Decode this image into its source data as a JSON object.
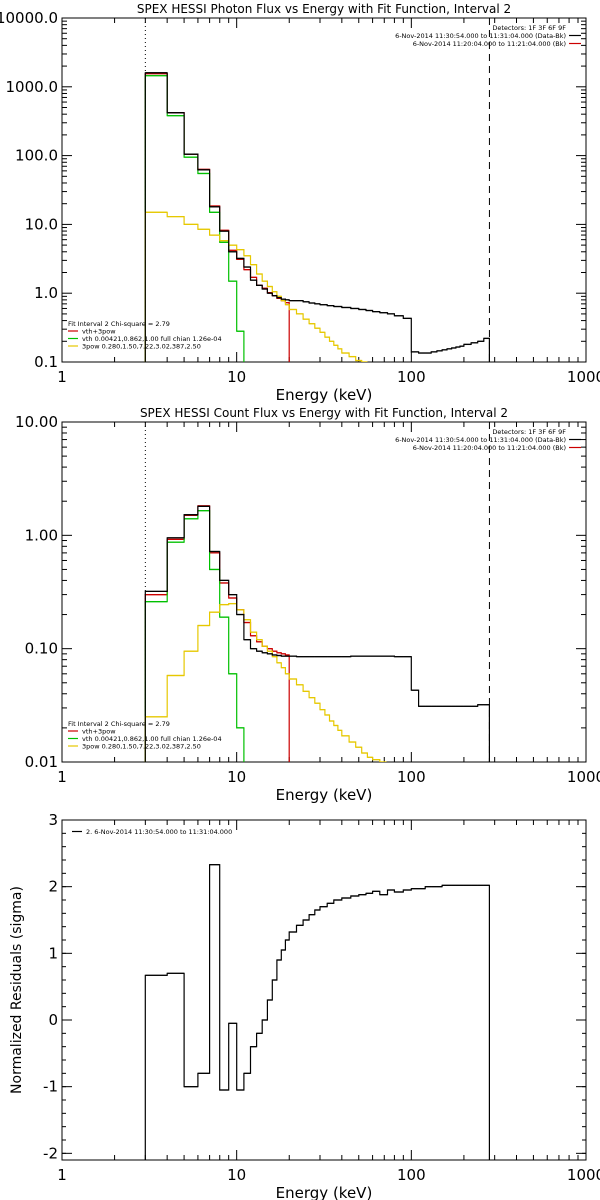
{
  "chart_data": [
    {
      "type": "line",
      "title": "SPEX HESSI Photon Flux vs Energy with Fit Function, Interval 2",
      "xlabel": "Energy (keV)",
      "ylabel": "",
      "xscale": "log",
      "yscale": "log",
      "xlim": [
        1,
        1000
      ],
      "ylim": [
        0.1,
        10000
      ],
      "x_ticks": [
        1,
        10,
        100,
        1000
      ],
      "x_tick_labels": [
        "1",
        "10",
        "100",
        "1000"
      ],
      "y_ticks": [
        0.1,
        1,
        10,
        100,
        1000,
        10000
      ],
      "y_tick_labels": [
        "0.1",
        "1.0",
        "10.0",
        "100.0",
        "1000.0",
        "10000.0"
      ],
      "vlines": [
        {
          "x": 3,
          "style": "dotted"
        },
        {
          "x": 280,
          "style": "dashed"
        }
      ],
      "header_lines": [
        "Detectors: 1F 3F 6F 9F",
        "6-Nov-2014 11:30:54.000 to 11:31:04.000 (Data-Bk)",
        "6-Nov-2014 11:20:04.000 to 11:21:04.000 (Bk)"
      ],
      "header_colors": [
        "#000000",
        "#000000",
        "#cc0000"
      ],
      "legend_lines": [
        "Fit Interval 2   Chi-square = 2.79",
        "vth+3pow",
        "vth 0.00421,0.862,1.00  full chian 1.26e-04",
        "3pow 0.280,1.50,7.22,3.02,387,2.50"
      ],
      "legend_colors": [
        "#000000",
        "#cc0000",
        "#00c000",
        "#e6c800"
      ],
      "legend_position": "bottom-left",
      "series": [
        {
          "name": "vth+3pow",
          "color": "#cc0000",
          "edges": [
            3,
            4,
            5,
            6,
            7,
            8,
            9,
            10,
            11,
            12,
            13,
            14,
            15,
            16,
            17,
            18,
            19,
            20
          ],
          "values": [
            1550,
            420,
            105,
            63,
            18.5,
            8.2,
            4.2,
            3.1,
            2.2,
            1.7,
            1.3,
            1.18,
            1.02,
            0.92,
            0.84,
            0.78,
            0.73
          ]
        },
        {
          "name": "vth",
          "color": "#00c000",
          "edges": [
            3,
            4,
            5,
            6,
            7,
            8,
            9,
            10,
            11
          ],
          "values": [
            1450,
            380,
            95,
            55,
            15,
            5.5,
            1.5,
            0.28
          ]
        },
        {
          "name": "3pow",
          "color": "#e6c800",
          "edges": [
            3,
            4,
            5,
            6,
            7,
            8,
            9,
            10,
            11,
            12,
            13,
            14,
            15,
            16,
            17,
            18,
            19,
            20,
            22,
            24,
            26,
            28,
            30,
            32,
            34,
            36,
            38,
            40,
            44,
            48,
            52,
            56
          ],
          "values": [
            15,
            13,
            10,
            8.5,
            7,
            5.8,
            5,
            4.3,
            3.5,
            2.6,
            1.9,
            1.5,
            1.25,
            1.05,
            0.9,
            0.78,
            0.68,
            0.58,
            0.5,
            0.42,
            0.36,
            0.31,
            0.27,
            0.23,
            0.2,
            0.175,
            0.155,
            0.135,
            0.12,
            0.105,
            0.1
          ]
        },
        {
          "name": "data",
          "color": "#000000",
          "edges": [
            3,
            4,
            5,
            6,
            7,
            8,
            9,
            10,
            11,
            12,
            13,
            14,
            15,
            16,
            17,
            18,
            19,
            20,
            22,
            24,
            26,
            28,
            30,
            33,
            36,
            40,
            45,
            50,
            55,
            60,
            66,
            73,
            80,
            90,
            100,
            110,
            120,
            130,
            140,
            150,
            160,
            170,
            180,
            190,
            200,
            220,
            240,
            260,
            280
          ],
          "values": [
            1600,
            420,
            105,
            62,
            18,
            8,
            4,
            3.2,
            2.4,
            1.55,
            1.3,
            1.15,
            1.0,
            0.92,
            0.86,
            0.82,
            0.8,
            0.78,
            0.78,
            0.75,
            0.72,
            0.7,
            0.68,
            0.66,
            0.64,
            0.62,
            0.6,
            0.58,
            0.56,
            0.54,
            0.52,
            0.5,
            0.47,
            0.43,
            0.14,
            0.135,
            0.135,
            0.14,
            0.145,
            0.15,
            0.155,
            0.16,
            0.165,
            0.17,
            0.18,
            0.19,
            0.2,
            0.22
          ]
        }
      ]
    },
    {
      "type": "line",
      "title": "SPEX HESSI Count Flux vs Energy with Fit Function, Interval 2",
      "xlabel": "Energy (keV)",
      "ylabel": "",
      "xscale": "log",
      "yscale": "log",
      "xlim": [
        1,
        1000
      ],
      "ylim": [
        0.01,
        10
      ],
      "x_ticks": [
        1,
        10,
        100,
        1000
      ],
      "x_tick_labels": [
        "1",
        "10",
        "100",
        "1000"
      ],
      "y_ticks": [
        0.01,
        0.1,
        1,
        10
      ],
      "y_tick_labels": [
        "0.01",
        "0.10",
        "1.00",
        "10.00"
      ],
      "vlines": [
        {
          "x": 3,
          "style": "dotted"
        },
        {
          "x": 280,
          "style": "dashed"
        }
      ],
      "header_lines": [
        "Detectors: 1F 3F 6F 9F",
        "6-Nov-2014 11:30:54.000 to 11:31:04.000 (Data-Bk)",
        "6-Nov-2014 11:20:04.000 to 11:21:04.000 (Bk)"
      ],
      "header_colors": [
        "#000000",
        "#000000",
        "#cc0000"
      ],
      "legend_lines": [
        "Fit Interval 2   Chi-square = 2.79",
        "vth+3pow",
        "vth 0.00421,0.862,1.00  full chian 1.26e-04",
        "3pow 0.280,1.50,7.22,3.02,387,2.50"
      ],
      "legend_colors": [
        "#000000",
        "#cc0000",
        "#00c000",
        "#e6c800"
      ],
      "legend_position": "bottom-left",
      "series": [
        {
          "name": "vth+3pow",
          "color": "#cc0000",
          "edges": [
            3,
            4,
            5,
            6,
            7,
            8,
            9,
            10,
            11,
            12,
            13,
            14,
            15,
            16,
            17,
            18,
            19,
            20
          ],
          "values": [
            0.3,
            0.92,
            1.5,
            1.82,
            0.7,
            0.38,
            0.28,
            0.22,
            0.17,
            0.13,
            0.115,
            0.105,
            0.1,
            0.095,
            0.092,
            0.09,
            0.088
          ]
        },
        {
          "name": "vth",
          "color": "#00c000",
          "edges": [
            3,
            4,
            5,
            6,
            7,
            8,
            9,
            10,
            11
          ],
          "values": [
            0.26,
            0.87,
            1.4,
            1.65,
            0.5,
            0.19,
            0.06,
            0.02
          ]
        },
        {
          "name": "3pow",
          "color": "#e6c800",
          "edges": [
            3,
            4,
            5,
            6,
            7,
            8,
            9,
            10,
            11,
            12,
            13,
            14,
            15,
            16,
            17,
            18,
            19,
            20,
            22,
            24,
            26,
            28,
            30,
            32,
            34,
            36,
            38,
            40,
            44,
            48,
            52,
            56,
            60,
            66,
            72
          ],
          "values": [
            0.025,
            0.058,
            0.095,
            0.16,
            0.21,
            0.245,
            0.25,
            0.22,
            0.18,
            0.14,
            0.12,
            0.105,
            0.095,
            0.085,
            0.075,
            0.068,
            0.06,
            0.054,
            0.048,
            0.042,
            0.037,
            0.033,
            0.029,
            0.026,
            0.023,
            0.021,
            0.019,
            0.017,
            0.015,
            0.0135,
            0.012,
            0.011,
            0.0105,
            0.01
          ]
        },
        {
          "name": "data",
          "color": "#000000",
          "edges": [
            3,
            4,
            5,
            6,
            7,
            8,
            9,
            10,
            11,
            12,
            13,
            14,
            15,
            16,
            17,
            18,
            19,
            20,
            22,
            24,
            26,
            28,
            30,
            33,
            36,
            40,
            45,
            50,
            55,
            60,
            66,
            73,
            80,
            90,
            100,
            110,
            120,
            130,
            140,
            150,
            160,
            170,
            180,
            190,
            200,
            220,
            240,
            260,
            280
          ],
          "values": [
            0.32,
            0.95,
            1.52,
            1.8,
            0.72,
            0.4,
            0.3,
            0.2,
            0.12,
            0.1,
            0.095,
            0.092,
            0.09,
            0.088,
            0.087,
            0.086,
            0.086,
            0.086,
            0.085,
            0.085,
            0.085,
            0.085,
            0.085,
            0.085,
            0.085,
            0.085,
            0.086,
            0.086,
            0.086,
            0.086,
            0.086,
            0.086,
            0.085,
            0.085,
            0.043,
            0.031,
            0.031,
            0.031,
            0.031,
            0.031,
            0.031,
            0.031,
            0.031,
            0.031,
            0.031,
            0.031,
            0.032,
            0.032
          ]
        }
      ]
    },
    {
      "type": "line",
      "title": "",
      "xlabel": "Energy (keV)",
      "ylabel": "Normalized Residuals (sigma)",
      "xscale": "log",
      "yscale": "linear",
      "xlim": [
        1,
        1000
      ],
      "ylim": [
        -2.1,
        3
      ],
      "x_ticks": [
        1,
        10,
        100,
        1000
      ],
      "x_tick_labels": [
        "1",
        "10",
        "100",
        "1000"
      ],
      "y_ticks": [
        -2,
        -1,
        0,
        1,
        2,
        3
      ],
      "y_tick_labels": [
        "-2",
        "-1",
        "0",
        "1",
        "2",
        "3"
      ],
      "legend_lines": [
        "2. 6-Nov-2014 11:30:54.000 to 11:31:04.000"
      ],
      "legend_colors": [
        "#000000"
      ],
      "legend_position": "top-left",
      "series": [
        {
          "name": "2. 6-Nov-2014 11:30:54.000 to 11:31:04.000",
          "color": "#000000",
          "edges": [
            3,
            4,
            5,
            6,
            7,
            8,
            9,
            10,
            11,
            12,
            13,
            14,
            15,
            16,
            17,
            18,
            19,
            20,
            22,
            24,
            26,
            28,
            30,
            33,
            36,
            40,
            45,
            50,
            55,
            60,
            66,
            73,
            80,
            90,
            100,
            110,
            120,
            130,
            140,
            150,
            160,
            170,
            180,
            190,
            200,
            220,
            240,
            260,
            280
          ],
          "values": [
            0.67,
            0.7,
            -1.0,
            -0.8,
            2.33,
            -1.05,
            -0.05,
            -1.05,
            -0.8,
            -0.4,
            -0.2,
            0.0,
            0.3,
            0.6,
            0.9,
            1.05,
            1.2,
            1.32,
            1.42,
            1.5,
            1.58,
            1.65,
            1.7,
            1.75,
            1.8,
            1.83,
            1.86,
            1.88,
            1.9,
            1.93,
            1.88,
            1.95,
            1.92,
            1.95,
            1.97,
            1.97,
            2.0,
            2.0,
            2.0,
            2.02,
            2.02,
            2.02,
            2.02,
            2.02,
            2.02,
            2.02,
            2.02,
            2.02
          ]
        }
      ]
    }
  ]
}
